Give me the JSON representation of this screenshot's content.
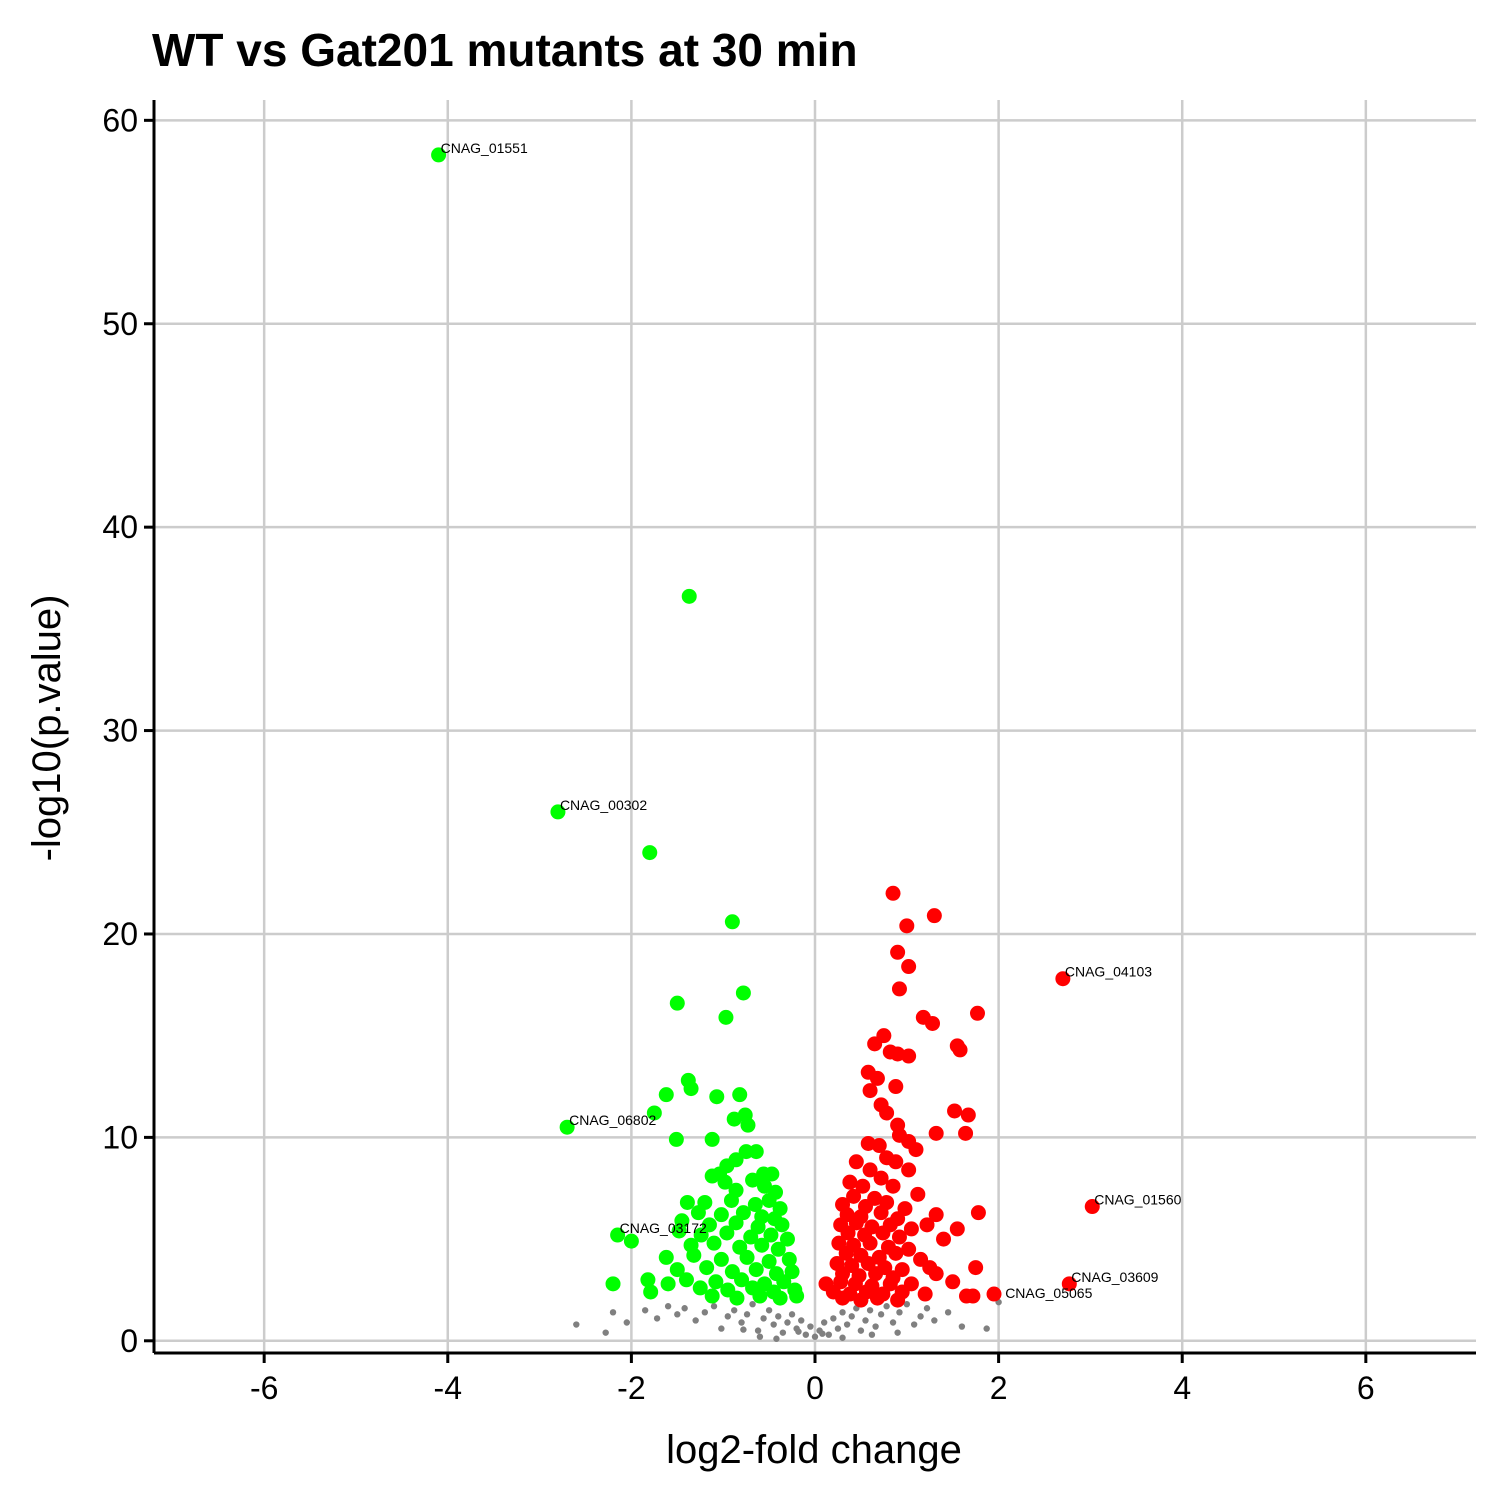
{
  "chart_data": {
    "type": "scatter",
    "title": "WT vs Gat201 mutants at 30 min",
    "xlabel": "log2-fold change",
    "ylabel": "-log10(p.value)",
    "xlim": [
      -7.2,
      7.2
    ],
    "ylim": [
      -0.6,
      61
    ],
    "x_ticks": [
      -6,
      -4,
      -2,
      0,
      2,
      4,
      6
    ],
    "x_tick_labels": [
      "-6",
      "-4",
      "-2",
      "0",
      "2",
      "4",
      "6"
    ],
    "y_ticks": [
      0,
      10,
      20,
      30,
      40,
      50,
      60
    ],
    "y_tick_labels": [
      "0",
      "10",
      "20",
      "30",
      "40",
      "50",
      "60"
    ],
    "grid": true,
    "legend": "none",
    "colors": {
      "down": "#00ff00",
      "up": "#ff0000",
      "ns": "#808080"
    },
    "series": [
      {
        "status": "down",
        "points": [
          [
            -4.1,
            58.3
          ],
          [
            -1.37,
            36.6
          ],
          [
            -2.8,
            26.0
          ],
          [
            -1.8,
            24.0
          ],
          [
            -0.9,
            20.6
          ],
          [
            -1.5,
            16.6
          ],
          [
            -0.78,
            17.1
          ],
          [
            -0.97,
            15.9
          ],
          [
            -1.38,
            12.8
          ],
          [
            -1.35,
            12.4
          ],
          [
            -1.62,
            12.1
          ],
          [
            -1.07,
            12.0
          ],
          [
            -0.82,
            12.1
          ],
          [
            -1.75,
            11.2
          ],
          [
            -0.88,
            10.9
          ],
          [
            -0.76,
            11.1
          ],
          [
            -0.73,
            10.6
          ],
          [
            -2.7,
            10.5
          ],
          [
            -1.51,
            9.9
          ],
          [
            -1.12,
            9.9
          ],
          [
            -0.75,
            9.3
          ],
          [
            -0.64,
            9.3
          ],
          [
            -0.86,
            8.9
          ],
          [
            -0.96,
            8.6
          ],
          [
            -1.04,
            8.2
          ],
          [
            -0.56,
            8.2
          ],
          [
            -0.47,
            8.2
          ],
          [
            -1.12,
            8.1
          ],
          [
            -0.68,
            7.9
          ],
          [
            -0.98,
            7.8
          ],
          [
            -0.55,
            7.6
          ],
          [
            -0.86,
            7.4
          ],
          [
            -0.43,
            7.3
          ],
          [
            -1.39,
            6.8
          ],
          [
            -1.2,
            6.8
          ],
          [
            -0.91,
            6.9
          ],
          [
            -0.65,
            6.7
          ],
          [
            -0.5,
            6.9
          ],
          [
            -0.38,
            6.5
          ],
          [
            -1.27,
            6.3
          ],
          [
            -1.02,
            6.2
          ],
          [
            -0.78,
            6.3
          ],
          [
            -0.58,
            6.1
          ],
          [
            -0.44,
            6.0
          ],
          [
            -1.45,
            5.9
          ],
          [
            -1.15,
            5.7
          ],
          [
            -0.86,
            5.8
          ],
          [
            -0.62,
            5.6
          ],
          [
            -0.36,
            5.7
          ],
          [
            -2.15,
            5.2
          ],
          [
            -1.48,
            5.4
          ],
          [
            -1.24,
            5.2
          ],
          [
            -0.96,
            5.3
          ],
          [
            -0.7,
            5.1
          ],
          [
            -0.48,
            5.2
          ],
          [
            -0.3,
            5.0
          ],
          [
            -2.0,
            4.9
          ],
          [
            -1.35,
            4.7
          ],
          [
            -1.1,
            4.8
          ],
          [
            -0.82,
            4.6
          ],
          [
            -0.58,
            4.7
          ],
          [
            -0.4,
            4.5
          ],
          [
            -1.62,
            4.1
          ],
          [
            -1.32,
            4.2
          ],
          [
            -1.02,
            4.0
          ],
          [
            -0.74,
            4.1
          ],
          [
            -0.5,
            3.9
          ],
          [
            -0.28,
            4.0
          ],
          [
            -1.5,
            3.5
          ],
          [
            -1.18,
            3.6
          ],
          [
            -0.9,
            3.4
          ],
          [
            -0.64,
            3.5
          ],
          [
            -0.42,
            3.3
          ],
          [
            -0.25,
            3.4
          ],
          [
            -1.82,
            3.0
          ],
          [
            -1.4,
            3.0
          ],
          [
            -1.08,
            2.9
          ],
          [
            -0.8,
            3.0
          ],
          [
            -0.55,
            2.8
          ],
          [
            -0.34,
            2.9
          ],
          [
            -2.2,
            2.8
          ],
          [
            -1.6,
            2.8
          ],
          [
            -1.25,
            2.6
          ],
          [
            -0.95,
            2.5
          ],
          [
            -0.68,
            2.6
          ],
          [
            -0.45,
            2.4
          ],
          [
            -0.22,
            2.5
          ],
          [
            -1.79,
            2.4
          ],
          [
            -1.12,
            2.2
          ],
          [
            -0.85,
            2.1
          ],
          [
            -0.6,
            2.2
          ],
          [
            -0.38,
            2.1
          ],
          [
            -0.2,
            2.2
          ]
        ]
      },
      {
        "status": "up",
        "points": [
          [
            0.85,
            22.0
          ],
          [
            1.3,
            20.9
          ],
          [
            1.0,
            20.4
          ],
          [
            0.9,
            19.1
          ],
          [
            1.02,
            18.4
          ],
          [
            2.7,
            17.8
          ],
          [
            0.92,
            17.3
          ],
          [
            1.77,
            16.1
          ],
          [
            1.18,
            15.9
          ],
          [
            1.28,
            15.6
          ],
          [
            0.75,
            15.0
          ],
          [
            0.65,
            14.6
          ],
          [
            1.55,
            14.5
          ],
          [
            1.58,
            14.3
          ],
          [
            0.82,
            14.2
          ],
          [
            0.9,
            14.1
          ],
          [
            1.02,
            14.0
          ],
          [
            0.58,
            13.2
          ],
          [
            0.68,
            12.9
          ],
          [
            0.6,
            12.3
          ],
          [
            0.88,
            12.5
          ],
          [
            0.72,
            11.6
          ],
          [
            1.52,
            11.3
          ],
          [
            1.67,
            11.1
          ],
          [
            0.78,
            11.2
          ],
          [
            0.9,
            10.6
          ],
          [
            1.32,
            10.2
          ],
          [
            1.64,
            10.2
          ],
          [
            0.92,
            10.1
          ],
          [
            0.58,
            9.7
          ],
          [
            0.7,
            9.6
          ],
          [
            1.02,
            9.8
          ],
          [
            0.78,
            9.0
          ],
          [
            1.1,
            9.4
          ],
          [
            0.88,
            8.8
          ],
          [
            0.45,
            8.8
          ],
          [
            0.6,
            8.4
          ],
          [
            1.02,
            8.4
          ],
          [
            0.72,
            8.0
          ],
          [
            0.38,
            7.8
          ],
          [
            0.52,
            7.6
          ],
          [
            0.85,
            7.6
          ],
          [
            1.12,
            7.2
          ],
          [
            0.42,
            7.1
          ],
          [
            0.65,
            7.0
          ],
          [
            0.3,
            6.7
          ],
          [
            0.55,
            6.6
          ],
          [
            0.78,
            6.8
          ],
          [
            0.98,
            6.5
          ],
          [
            3.02,
            6.6
          ],
          [
            0.35,
            6.2
          ],
          [
            0.5,
            6.1
          ],
          [
            0.72,
            6.3
          ],
          [
            0.9,
            6.0
          ],
          [
            1.32,
            6.2
          ],
          [
            1.78,
            6.3
          ],
          [
            0.28,
            5.7
          ],
          [
            0.45,
            5.8
          ],
          [
            0.62,
            5.6
          ],
          [
            0.82,
            5.7
          ],
          [
            1.05,
            5.5
          ],
          [
            1.22,
            5.7
          ],
          [
            1.55,
            5.5
          ],
          [
            0.36,
            5.3
          ],
          [
            0.54,
            5.2
          ],
          [
            0.74,
            5.3
          ],
          [
            0.92,
            5.1
          ],
          [
            1.4,
            5.0
          ],
          [
            0.26,
            4.8
          ],
          [
            0.42,
            4.7
          ],
          [
            0.6,
            4.8
          ],
          [
            0.8,
            4.6
          ],
          [
            1.02,
            4.5
          ],
          [
            0.34,
            4.3
          ],
          [
            0.5,
            4.2
          ],
          [
            0.7,
            4.1
          ],
          [
            0.88,
            4.3
          ],
          [
            1.15,
            4.0
          ],
          [
            0.24,
            3.8
          ],
          [
            0.4,
            3.7
          ],
          [
            0.58,
            3.8
          ],
          [
            0.76,
            3.6
          ],
          [
            0.95,
            3.5
          ],
          [
            1.25,
            3.6
          ],
          [
            1.75,
            3.6
          ],
          [
            0.3,
            3.3
          ],
          [
            0.48,
            3.2
          ],
          [
            0.66,
            3.3
          ],
          [
            0.85,
            3.1
          ],
          [
            1.32,
            3.3
          ],
          [
            0.12,
            2.8
          ],
          [
            0.28,
            2.9
          ],
          [
            0.44,
            2.8
          ],
          [
            0.62,
            2.7
          ],
          [
            0.82,
            2.8
          ],
          [
            1.05,
            2.8
          ],
          [
            1.5,
            2.9
          ],
          [
            2.77,
            2.8
          ],
          [
            0.2,
            2.4
          ],
          [
            0.38,
            2.3
          ],
          [
            0.56,
            2.4
          ],
          [
            0.74,
            2.3
          ],
          [
            0.95,
            2.4
          ],
          [
            1.2,
            2.3
          ],
          [
            1.65,
            2.2
          ],
          [
            1.95,
            2.3
          ],
          [
            0.3,
            2.1
          ],
          [
            0.5,
            2.0
          ],
          [
            0.68,
            2.1
          ],
          [
            0.9,
            2.0
          ],
          [
            1.72,
            2.2
          ]
        ]
      }
    ],
    "ns_points": [
      [
        -2.6,
        0.8
      ],
      [
        -2.28,
        0.4
      ],
      [
        -2.2,
        1.4
      ],
      [
        -2.05,
        0.9
      ],
      [
        -1.85,
        1.5
      ],
      [
        -1.72,
        1.1
      ],
      [
        -1.6,
        1.7
      ],
      [
        -1.5,
        1.3
      ],
      [
        -1.42,
        1.6
      ],
      [
        -1.3,
        1.0
      ],
      [
        -1.2,
        1.4
      ],
      [
        -1.1,
        1.7
      ],
      [
        -1.02,
        0.6
      ],
      [
        -0.95,
        1.2
      ],
      [
        -0.88,
        1.5
      ],
      [
        -0.8,
        0.9
      ],
      [
        -0.74,
        1.3
      ],
      [
        -0.68,
        1.8
      ],
      [
        -0.62,
        0.5
      ],
      [
        -0.56,
        1.1
      ],
      [
        -0.5,
        1.5
      ],
      [
        -0.45,
        0.8
      ],
      [
        -0.4,
        1.2
      ],
      [
        -0.35,
        0.4
      ],
      [
        -0.3,
        0.9
      ],
      [
        -0.25,
        1.3
      ],
      [
        -0.2,
        0.6
      ],
      [
        -0.15,
        1.0
      ],
      [
        -0.1,
        0.3
      ],
      [
        -0.05,
        0.7
      ],
      [
        0.0,
        0.2
      ],
      [
        0.05,
        0.5
      ],
      [
        0.1,
        0.9
      ],
      [
        0.15,
        0.3
      ],
      [
        0.2,
        1.1
      ],
      [
        0.25,
        0.6
      ],
      [
        0.3,
        1.4
      ],
      [
        0.35,
        0.8
      ],
      [
        0.4,
        1.2
      ],
      [
        0.45,
        1.6
      ],
      [
        0.5,
        0.5
      ],
      [
        0.55,
        1.0
      ],
      [
        0.6,
        1.5
      ],
      [
        0.66,
        0.7
      ],
      [
        0.72,
        1.3
      ],
      [
        0.78,
        1.7
      ],
      [
        0.85,
        0.9
      ],
      [
        0.92,
        1.4
      ],
      [
        1.0,
        1.8
      ],
      [
        1.08,
        0.8
      ],
      [
        1.15,
        1.2
      ],
      [
        1.22,
        1.6
      ],
      [
        1.3,
        1.0
      ],
      [
        1.45,
        1.4
      ],
      [
        1.6,
        0.7
      ],
      [
        1.87,
        0.6
      ],
      [
        2.0,
        1.9
      ],
      [
        -0.6,
        0.2
      ],
      [
        -0.42,
        0.1
      ],
      [
        0.3,
        0.15
      ],
      [
        0.62,
        0.3
      ],
      [
        -0.18,
        0.45
      ],
      [
        0.08,
        0.35
      ],
      [
        -0.78,
        0.55
      ],
      [
        0.9,
        0.4
      ]
    ],
    "labels": [
      {
        "text": "CNAG_01551",
        "x": -4.1,
        "y": 58.3
      },
      {
        "text": "CNAG_00302",
        "x": -2.8,
        "y": 26.0
      },
      {
        "text": "CNAG_04103",
        "x": 2.7,
        "y": 17.8
      },
      {
        "text": "CNAG_06802",
        "x": -2.7,
        "y": 10.5
      },
      {
        "text": "CNAG_01560",
        "x": 3.02,
        "y": 6.6
      },
      {
        "text": "CNAG_03172",
        "x": -2.15,
        "y": 5.2
      },
      {
        "text": "CNAG_03609",
        "x": 2.77,
        "y": 2.8
      },
      {
        "text": "CNAG_05065",
        "x": 2.05,
        "y": 2.0
      }
    ]
  }
}
